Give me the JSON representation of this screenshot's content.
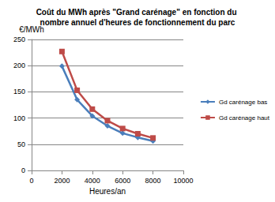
{
  "chart_data": {
    "type": "line",
    "title": "Coût du MWh après \"Grand carénage\" en fonction du nombre annuel d'heures de fonctionnement du parc",
    "x_label": "Heures/an",
    "y_label": "€/MWh",
    "x": [
      2000,
      3000,
      4000,
      5000,
      6000,
      7000,
      8000
    ],
    "series": [
      {
        "name": "Gd carénage bas",
        "color": "#4a7ebb",
        "marker": "diamond",
        "line_style": "solid",
        "values": [
          199,
          135,
          104,
          85,
          71,
          63,
          56
        ]
      },
      {
        "name": "Gd carénage haut",
        "color": "#be4b48",
        "marker": "square",
        "line_style": "solid",
        "values": [
          227,
          153,
          117,
          95,
          80,
          70,
          62
        ]
      }
    ],
    "xlim": [
      0,
      10000
    ],
    "xticks": [
      0,
      2000,
      4000,
      6000,
      8000,
      10000
    ],
    "ylim": [
      0,
      250
    ],
    "yticks": [
      0,
      50,
      100,
      150,
      200,
      250
    ],
    "grid": true,
    "legend": "right"
  }
}
